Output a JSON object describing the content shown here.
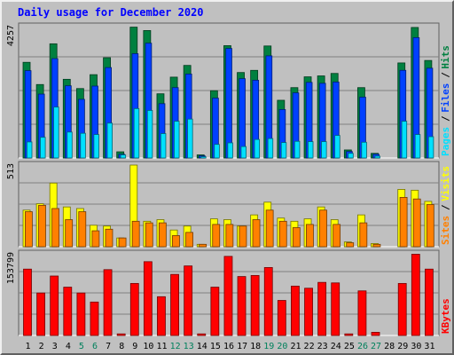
{
  "chart_data": [
    {
      "type": "bar",
      "title": "Daily usage for December 2020",
      "ylabel_max": "4257",
      "ylim": [
        0,
        4257
      ],
      "legend": [
        "Pages",
        "Files",
        "Hits"
      ],
      "categories": [
        "1",
        "2",
        "3",
        "4",
        "5",
        "6",
        "7",
        "8",
        "9",
        "10",
        "11",
        "12",
        "13",
        "14",
        "15",
        "16",
        "17",
        "18",
        "19",
        "20",
        "21",
        "22",
        "23",
        "24",
        "25",
        "26",
        "27",
        "28",
        "29",
        "30",
        "31"
      ],
      "weekend_days": [
        "5",
        "6",
        "12",
        "13",
        "19",
        "20",
        "26",
        "27"
      ],
      "series": [
        {
          "name": "Hits",
          "values": [
            3100,
            2380,
            3700,
            2550,
            2250,
            2700,
            3250,
            200,
            4240,
            4130,
            2080,
            2620,
            3000,
            100,
            2180,
            3640,
            2770,
            2840,
            3630,
            1870,
            2280,
            2630,
            2660,
            2740,
            260,
            2280,
            150,
            0,
            3080,
            4230,
            3160
          ]
        },
        {
          "name": "Files",
          "values": [
            2830,
            2070,
            3220,
            2340,
            1900,
            2330,
            2930,
            120,
            3380,
            3720,
            1760,
            2280,
            2720,
            70,
            1940,
            3550,
            2570,
            2520,
            3310,
            1570,
            2110,
            2450,
            2420,
            2460,
            210,
            1970,
            120,
            0,
            2840,
            3900,
            2910
          ]
        },
        {
          "name": "Pages",
          "values": [
            520,
            670,
            1650,
            840,
            800,
            760,
            1130,
            100,
            1600,
            1540,
            790,
            1190,
            1260,
            40,
            440,
            490,
            370,
            600,
            630,
            500,
            540,
            530,
            530,
            730,
            150,
            510,
            60,
            0,
            1190,
            760,
            690
          ]
        }
      ]
    },
    {
      "type": "bar",
      "ylabel_max": "513",
      "ylim": [
        0,
        513
      ],
      "legend": [
        "Sites",
        "Visits"
      ],
      "categories": [
        "1",
        "2",
        "3",
        "4",
        "5",
        "6",
        "7",
        "8",
        "9",
        "10",
        "11",
        "12",
        "13",
        "14",
        "15",
        "16",
        "17",
        "18",
        "19",
        "20",
        "21",
        "22",
        "23",
        "24",
        "25",
        "26",
        "27",
        "28",
        "29",
        "30",
        "31"
      ],
      "series": [
        {
          "name": "Visits",
          "values": [
            230,
            270,
            400,
            250,
            240,
            135,
            130,
            55,
            513,
            160,
            170,
            105,
            130,
            15,
            175,
            170,
            130,
            200,
            280,
            180,
            160,
            175,
            250,
            170,
            30,
            200,
            20,
            0,
            360,
            355,
            285
          ]
        },
        {
          "name": "Sites",
          "values": [
            220,
            260,
            240,
            170,
            220,
            100,
            110,
            55,
            160,
            150,
            150,
            70,
            90,
            15,
            140,
            140,
            130,
            170,
            230,
            160,
            120,
            140,
            230,
            140,
            25,
            150,
            15,
            0,
            310,
            300,
            265
          ]
        }
      ]
    },
    {
      "type": "bar",
      "ylabel_max": "153799",
      "ylim": [
        0,
        153799
      ],
      "legend": [
        "KBytes"
      ],
      "categories": [
        "1",
        "2",
        "3",
        "4",
        "5",
        "6",
        "7",
        "8",
        "9",
        "10",
        "11",
        "12",
        "13",
        "14",
        "15",
        "16",
        "17",
        "18",
        "19",
        "20",
        "21",
        "22",
        "23",
        "24",
        "25",
        "26",
        "27",
        "28",
        "29",
        "30",
        "31"
      ],
      "series": [
        {
          "name": "KBytes",
          "values": [
            125000,
            80000,
            112000,
            91000,
            80000,
            63000,
            124000,
            3000,
            98000,
            139000,
            73000,
            115000,
            131000,
            3000,
            91000,
            149000,
            111000,
            113000,
            128000,
            66000,
            93000,
            89000,
            100000,
            99000,
            3000,
            84000,
            6000,
            0,
            98000,
            153000,
            125000
          ]
        }
      ]
    }
  ],
  "colors": {
    "hits": "#008040",
    "files": "#0040ff",
    "pages": "#00e0ff",
    "visits": "#ffff00",
    "sites": "#ff8000",
    "kbytes": "#ff0000",
    "title": "#0000ff",
    "weekend": "#00805c",
    "weekday": "#000000",
    "panel": "#c0c0c0",
    "grid": "#808080"
  }
}
